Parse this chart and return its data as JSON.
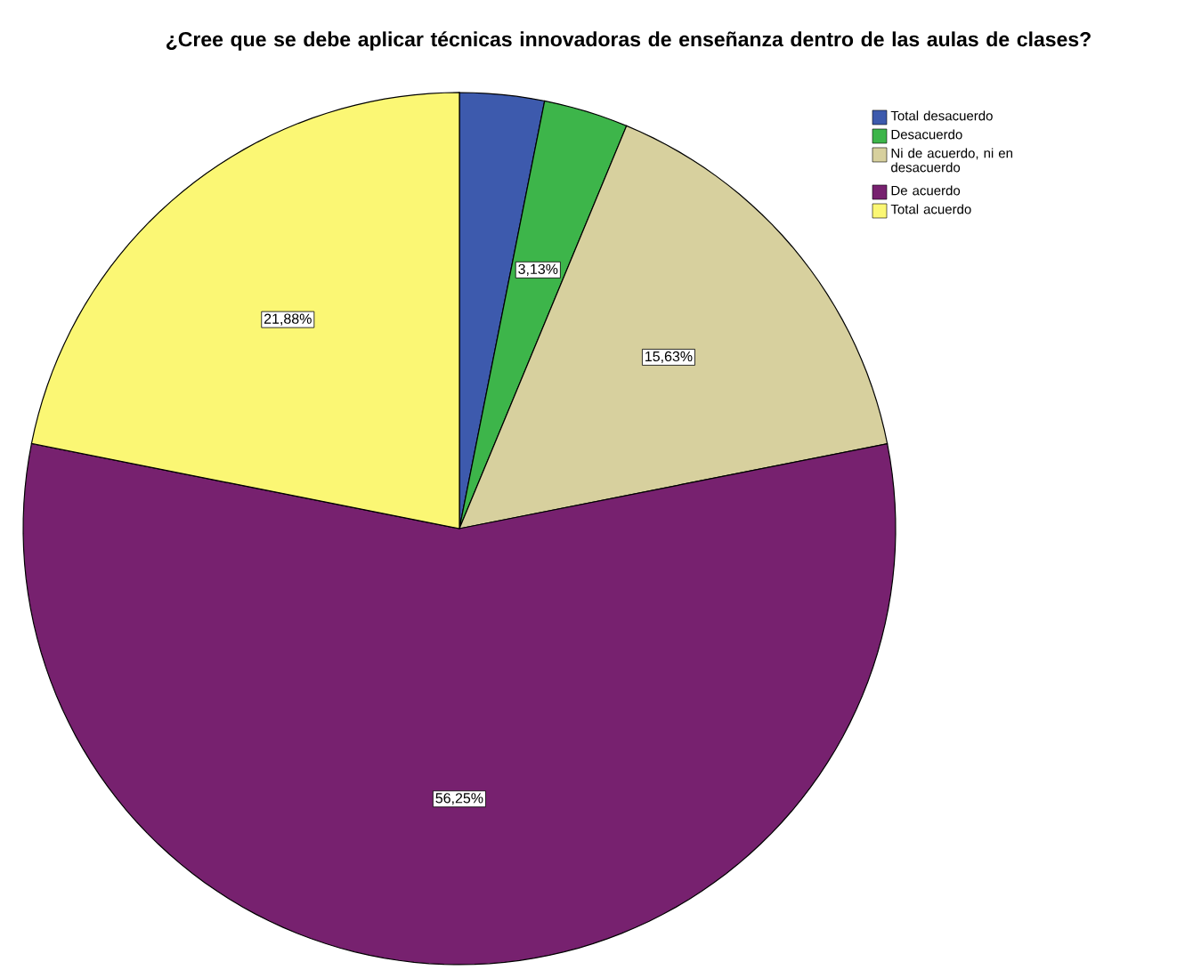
{
  "chart_data": {
    "type": "pie",
    "title": "¿Cree que se debe aplicar técnicas innovadoras de enseñanza dentro de las aulas de clases?",
    "categories": [
      "Total desacuerdo",
      "Desacuerdo",
      "Ni de acuerdo, ni en desacuerdo",
      "De acuerdo",
      "Total acuerdo"
    ],
    "values": [
      3.13,
      3.13,
      15.63,
      56.25,
      21.88
    ],
    "value_labels": [
      null,
      "3,13%",
      "15,63%",
      "56,25%",
      "21,88%"
    ],
    "colors": [
      "#3d5aad",
      "#3db54a",
      "#d7d09e",
      "#77216f",
      "#fbf774"
    ],
    "legend": "top right"
  }
}
